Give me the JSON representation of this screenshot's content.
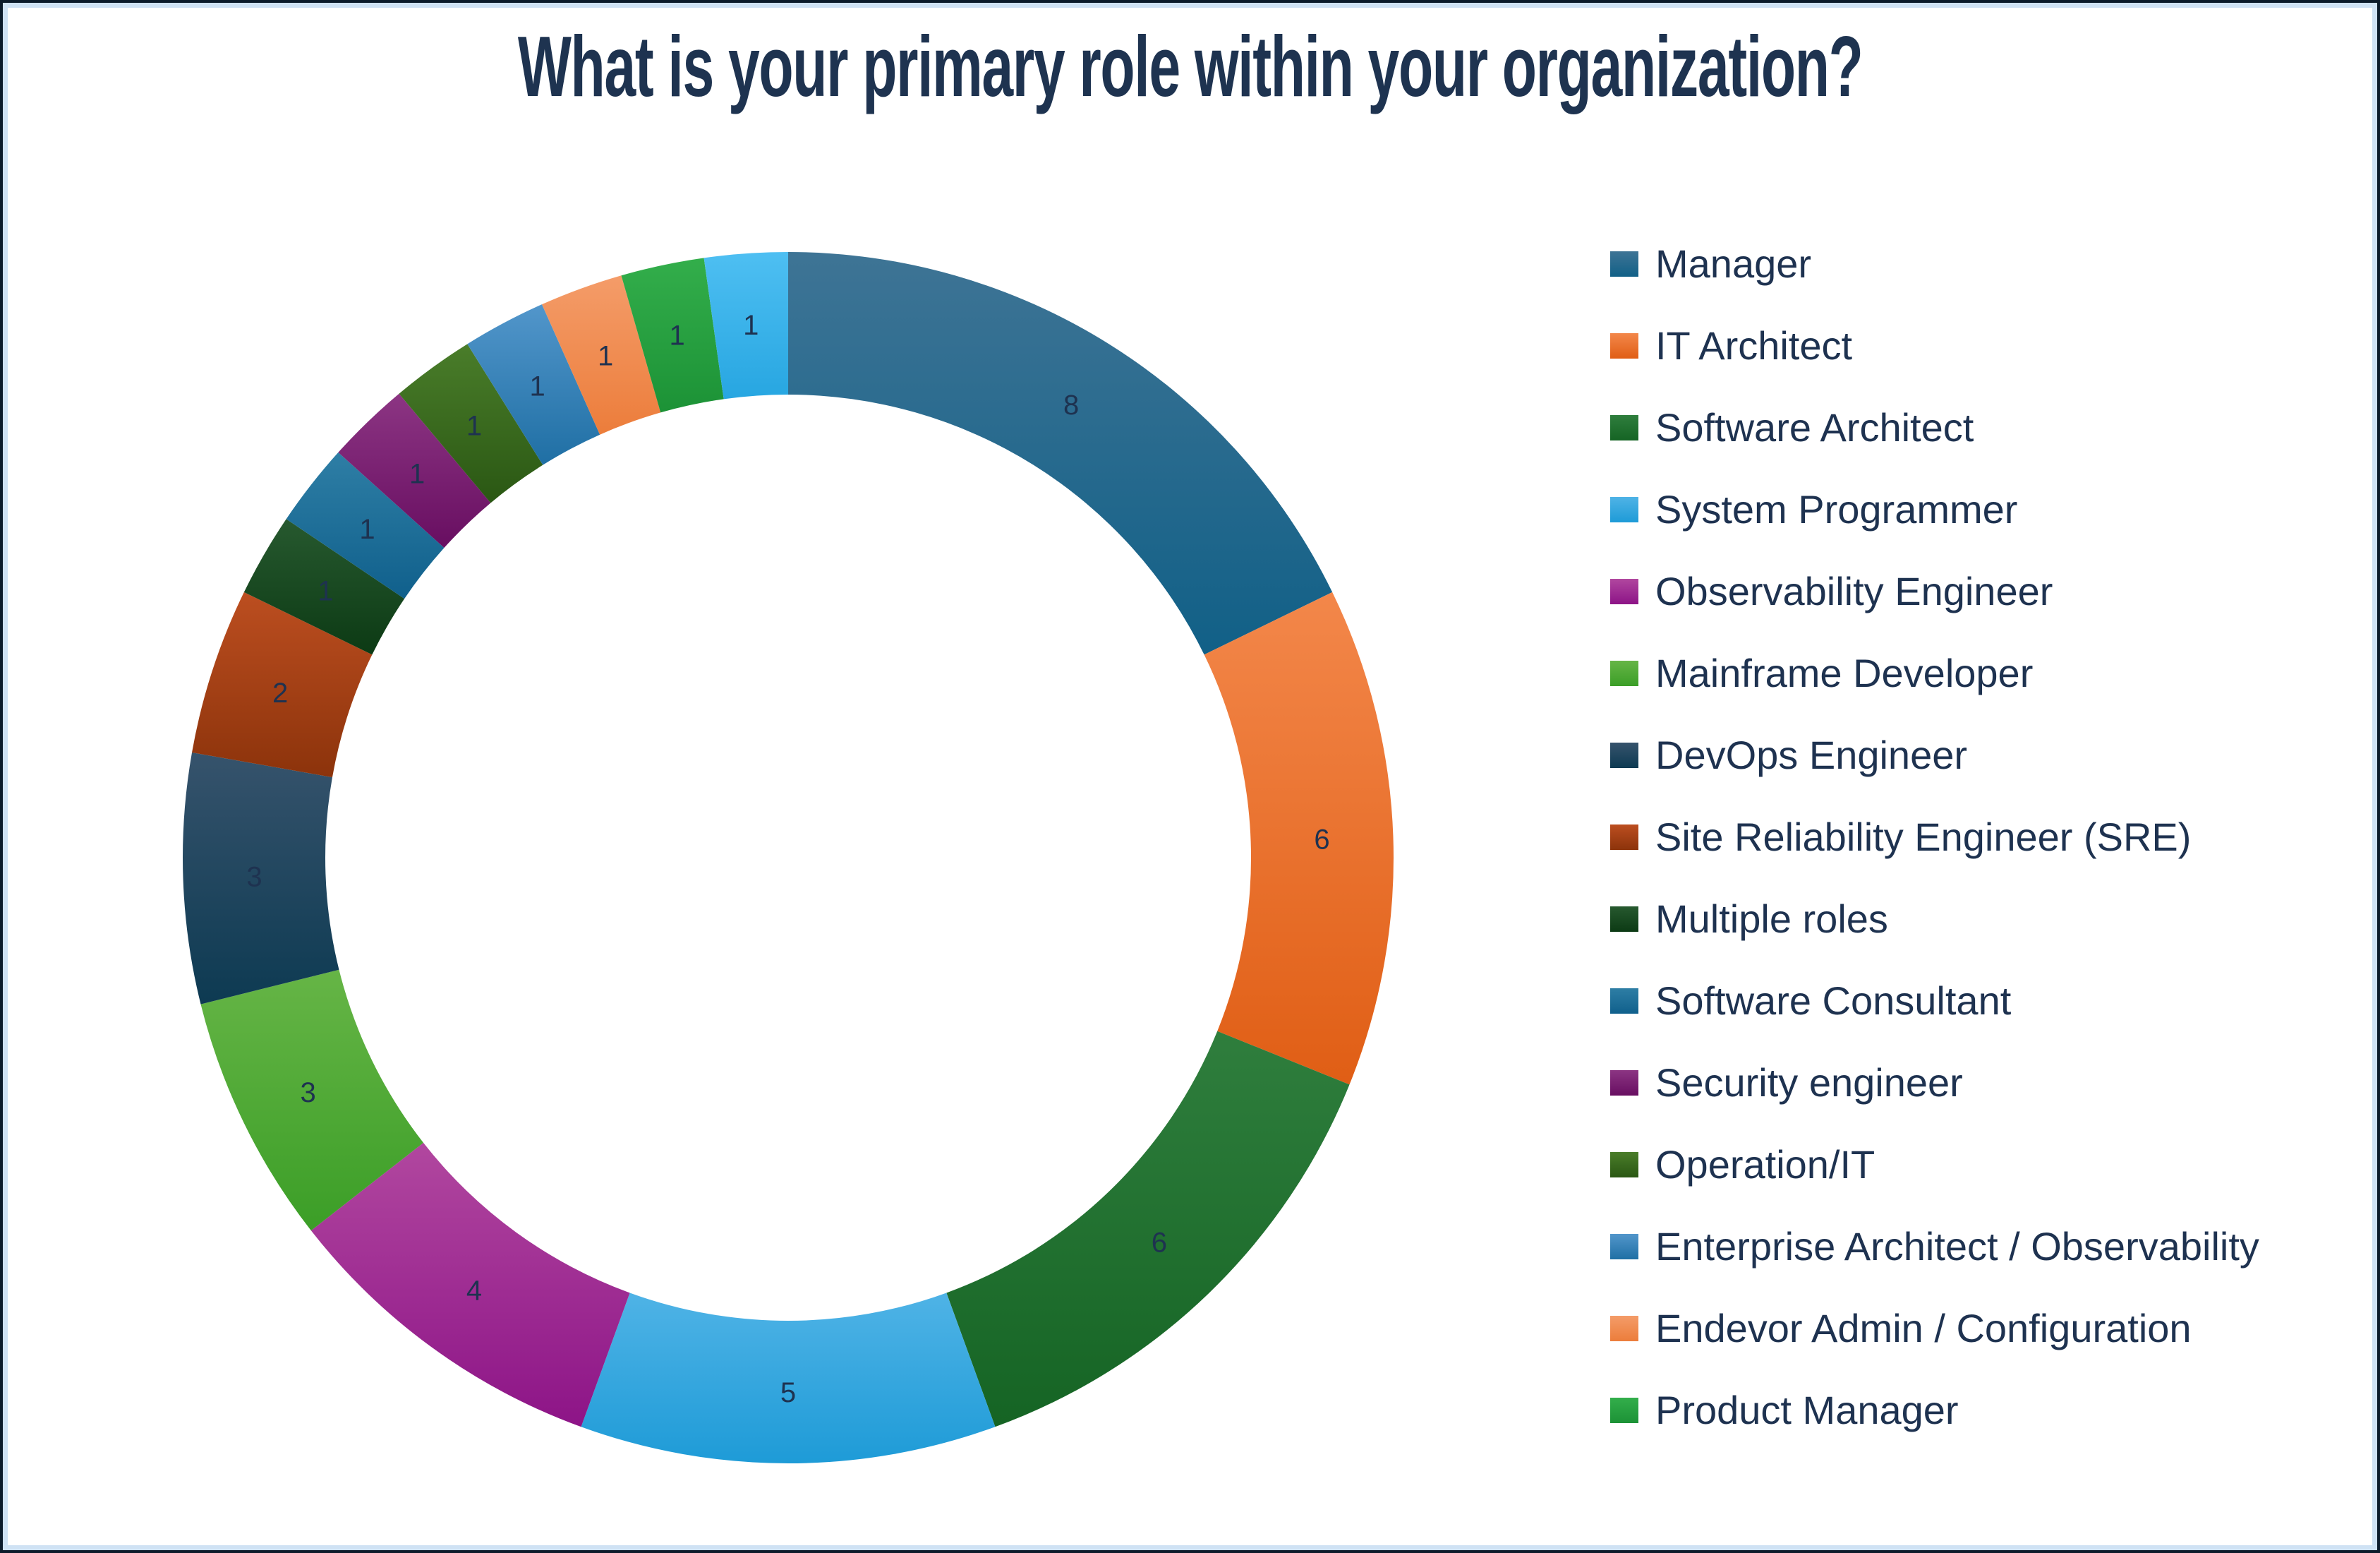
{
  "title": {
    "text": "What is your primary role within your organization?"
  },
  "colors": {
    "text": "#1E3250",
    "title": "#1E3350",
    "frame_outer": "#0C1B2B",
    "frame_inner": "#CFE2F4",
    "background": "#FFFFFF"
  },
  "chart_data": {
    "type": "pie",
    "subtype": "donut",
    "title": "What is your primary role within your organization?",
    "total": 45,
    "start_angle_deg": 0,
    "direction": "clockwise",
    "donut_hole_ratio": 0.765,
    "legend_position": "right",
    "data_labels": "value",
    "slices": [
      {
        "label": "Manager",
        "value": 8,
        "color_top": "#3E7495",
        "color_bottom": "#116087",
        "in_legend": true
      },
      {
        "label": "IT Architect",
        "value": 6,
        "color_top": "#F3874A",
        "color_bottom": "#E05E15",
        "in_legend": true
      },
      {
        "label": "Software Architect",
        "value": 6,
        "color_top": "#2F7E3D",
        "color_bottom": "#156424",
        "in_legend": true
      },
      {
        "label": "System Programmer",
        "value": 5,
        "color_top": "#4FB3E6",
        "color_bottom": "#1E9BD7",
        "in_legend": true
      },
      {
        "label": "Observability Engineer",
        "value": 4,
        "color_top": "#B1479F",
        "color_bottom": "#8D1487",
        "in_legend": true
      },
      {
        "label": "Mainframe Developer",
        "value": 3,
        "color_top": "#66B546",
        "color_bottom": "#3B9E27",
        "in_legend": true
      },
      {
        "label": "DevOps Engineer",
        "value": 3,
        "color_top": "#36536C",
        "color_bottom": "#0D3A52",
        "in_legend": true
      },
      {
        "label": "Site Reliability Engineer (SRE)",
        "value": 2,
        "color_top": "#BC4E20",
        "color_bottom": "#8C330B",
        "in_legend": true
      },
      {
        "label": "Multiple roles",
        "value": 1,
        "color_top": "#27592F",
        "color_bottom": "#0C3A14",
        "in_legend": true
      },
      {
        "label": "Software Consultant",
        "value": 1,
        "color_top": "#2E7EA5",
        "color_bottom": "#10608C",
        "in_legend": true
      },
      {
        "label": "Security engineer",
        "value": 1,
        "color_top": "#8C3583",
        "color_bottom": "#680E61",
        "in_legend": true
      },
      {
        "label": "Operation/IT",
        "value": 1,
        "color_top": "#4A7D2A",
        "color_bottom": "#2A5713",
        "in_legend": true
      },
      {
        "label": "Enterprise Architect / Observability",
        "value": 1,
        "color_top": "#5296CB",
        "color_bottom": "#1F6FA4",
        "in_legend": true
      },
      {
        "label": "Endevor Admin / Configuration",
        "value": 1,
        "color_top": "#F49C69",
        "color_bottom": "#EC7D3B",
        "in_legend": true
      },
      {
        "label": "Product Manager",
        "value": 1,
        "color_top": "#33AE4B",
        "color_bottom": "#1C9236",
        "in_legend": true
      },
      {
        "label": "",
        "value": 1,
        "color_top": "#4EBFF2",
        "color_bottom": "#27A6E1",
        "in_legend": false
      }
    ]
  }
}
